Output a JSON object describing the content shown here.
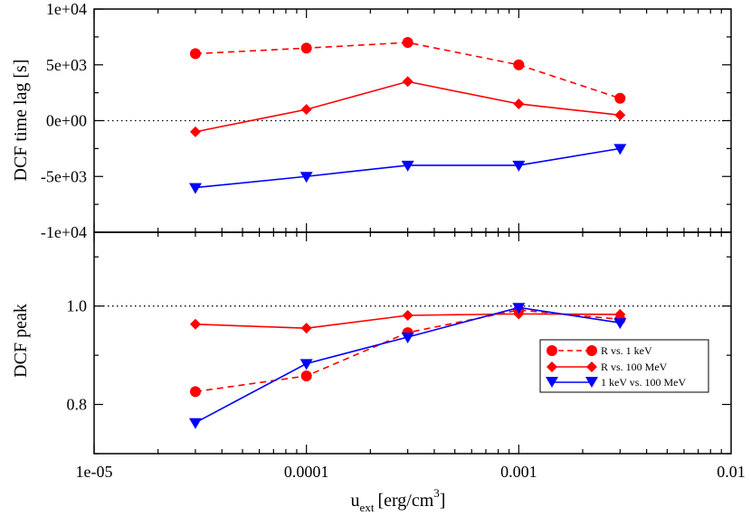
{
  "chart_data": [
    {
      "type": "line",
      "panel": "top",
      "title": "",
      "ylabel": "DCF time lag [s]",
      "xscale": "log",
      "xlim": [
        1e-05,
        0.01
      ],
      "ylim": [
        -10000,
        10000
      ],
      "yticks": [
        -10000,
        -5000,
        0,
        5000,
        10000
      ],
      "ytick_labels": [
        "-1e+04",
        "-5e+03",
        "0e+00",
        "5e+03",
        "1e+04"
      ],
      "reference_line": 0,
      "x": [
        3e-05,
        0.0001,
        0.0003,
        0.001,
        0.003
      ],
      "series": [
        {
          "name": "R vs. 1 keV",
          "values": [
            6000,
            6500,
            7000,
            5000,
            2000
          ],
          "color": "#ff0000",
          "marker": "circle",
          "dashed": true
        },
        {
          "name": "R vs. 100 MeV",
          "values": [
            -1000,
            1000,
            3500,
            1500,
            500
          ],
          "color": "#ff0000",
          "marker": "diamond",
          "dashed": false
        },
        {
          "name": "1 keV vs. 100 MeV",
          "values": [
            -6000,
            -5000,
            -4000,
            -4000,
            -2500
          ],
          "color": "#0000ff",
          "marker": "triangle-down",
          "dashed": false
        }
      ]
    },
    {
      "type": "line",
      "panel": "bottom",
      "title": "",
      "ylabel": "DCF peak",
      "xlabel": "u_ext [erg/cm^3]",
      "xscale": "log",
      "xlim": [
        1e-05,
        0.01
      ],
      "ylim": [
        0.7,
        1.15
      ],
      "yticks": [
        0.8,
        1.0
      ],
      "ytick_labels": [
        "0.8",
        "1.0"
      ],
      "reference_line": 1.0,
      "x": [
        3e-05,
        0.0001,
        0.0003,
        0.001,
        0.003
      ],
      "xtick_labels": [
        "1e-05",
        "0.0001",
        "0.001",
        "0.01"
      ],
      "legend_position": "lower-right",
      "series": [
        {
          "name": "R vs. 1 keV",
          "values": [
            0.826,
            0.858,
            0.946,
            0.992,
            0.973
          ],
          "color": "#ff0000",
          "marker": "circle",
          "dashed": true
        },
        {
          "name": "R vs. 100 MeV",
          "values": [
            0.963,
            0.955,
            0.981,
            0.984,
            0.983
          ],
          "color": "#ff0000",
          "marker": "diamond",
          "dashed": false
        },
        {
          "name": "1 keV vs. 100 MeV",
          "values": [
            0.763,
            0.883,
            0.937,
            0.997,
            0.966
          ],
          "color": "#0000ff",
          "marker": "triangle-down",
          "dashed": false
        }
      ]
    }
  ],
  "axis_labels": {
    "top_ylabel": "DCF time lag [s]",
    "bottom_ylabel": "DCF peak",
    "xlabel_main": "u",
    "xlabel_sub": "ext",
    "xlabel_unit": "[erg/cm",
    "xlabel_sup": "3",
    "xlabel_close": "]"
  },
  "legend": {
    "items": [
      "R vs. 1 keV",
      "R vs. 100 MeV",
      "1 keV vs. 100 MeV"
    ]
  }
}
